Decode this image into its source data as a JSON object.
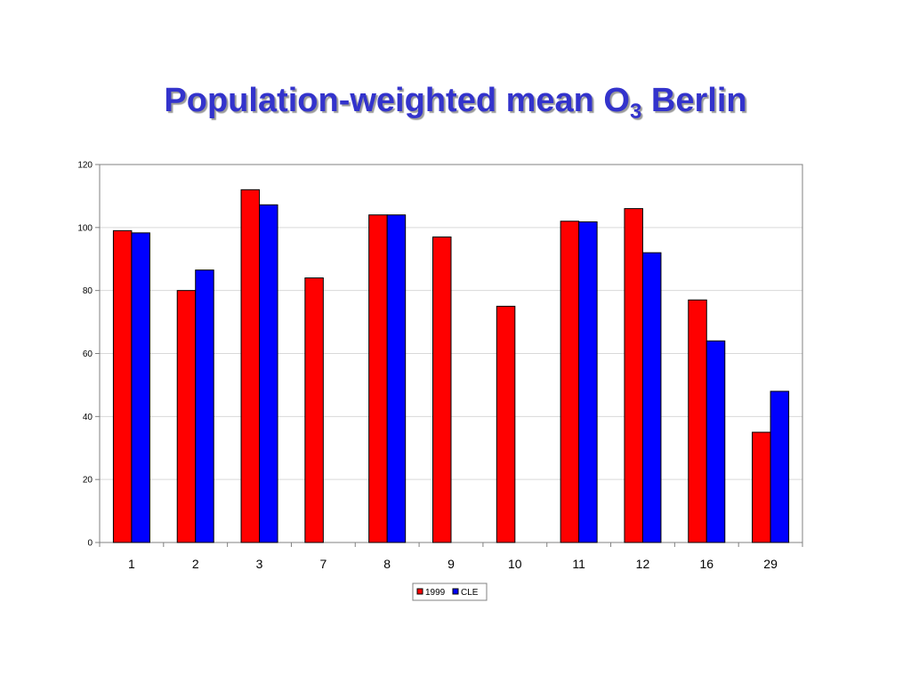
{
  "title": {
    "prefix": "Population-weighted mean O",
    "subscript": "3",
    "suffix": " Berlin"
  },
  "chart_data": {
    "type": "bar",
    "title": "Population-weighted mean O3 Berlin",
    "xlabel": "",
    "ylabel": "",
    "categories": [
      "1",
      "2",
      "3",
      "7",
      "8",
      "9",
      "10",
      "11",
      "12",
      "16",
      "29"
    ],
    "series": [
      {
        "name": "1999",
        "color": "#ff0000",
        "values": [
          99,
          80,
          112,
          84,
          104,
          97,
          75,
          102,
          106,
          77,
          35
        ]
      },
      {
        "name": "CLE",
        "color": "#0000ff",
        "values": [
          98.3,
          86.5,
          107.2,
          null,
          104,
          null,
          null,
          101.8,
          92,
          64,
          48
        ]
      }
    ],
    "ylim": [
      0,
      120
    ],
    "yticks": [
      0,
      20,
      40,
      60,
      80,
      100,
      120
    ],
    "grid": true,
    "legend_position": "bottom-center"
  }
}
